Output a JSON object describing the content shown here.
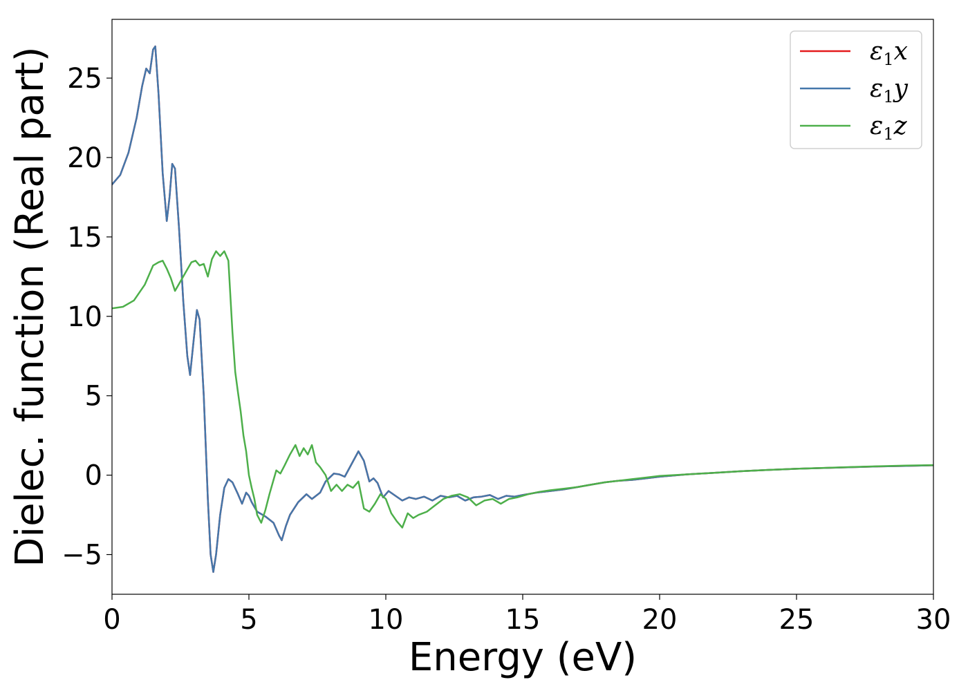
{
  "chart_data": {
    "type": "line",
    "title": "",
    "xlabel": "Energy (eV)",
    "ylabel": "Dielec. function (Real part)",
    "xlim": [
      0,
      30
    ],
    "ylim": [
      -7.5,
      28.7
    ],
    "xticks": [
      0,
      5,
      10,
      15,
      20,
      25,
      30
    ],
    "xtick_labels": [
      "0",
      "5",
      "10",
      "15",
      "20",
      "25",
      "30"
    ],
    "yticks": [
      -5,
      0,
      5,
      10,
      15,
      20,
      25
    ],
    "ytick_labels": [
      "−5",
      "0",
      "5",
      "10",
      "15",
      "20",
      "25"
    ],
    "grid": false,
    "legend_position": "top-right",
    "series": [
      {
        "name": "ε₁x",
        "legend": {
          "symbol": "ε",
          "sub": "1",
          "axis": "x"
        },
        "color": "#e41a1c",
        "x": [
          0,
          0.3,
          0.6,
          0.9,
          1.1,
          1.25,
          1.38,
          1.5,
          1.58,
          1.7,
          1.85,
          2.0,
          2.1,
          2.2,
          2.3,
          2.45,
          2.6,
          2.75,
          2.85,
          3.0,
          3.1,
          3.2,
          3.35,
          3.5,
          3.6,
          3.7,
          3.8,
          3.95,
          4.1,
          4.25,
          4.4,
          4.6,
          4.75,
          4.9,
          5.0,
          5.1,
          5.3,
          5.6,
          5.9,
          6.1,
          6.2,
          6.35,
          6.5,
          6.8,
          7.1,
          7.3,
          7.6,
          7.8,
          8.1,
          8.3,
          8.5,
          8.75,
          9.0,
          9.2,
          9.4,
          9.55,
          9.7,
          9.9,
          10.1,
          10.35,
          10.6,
          10.85,
          11.1,
          11.4,
          11.7,
          12.0,
          12.3,
          12.6,
          12.9,
          13.2,
          13.5,
          13.8,
          14.1,
          14.4,
          14.7,
          15.0,
          15.5,
          16.0,
          16.5,
          17.0,
          17.5,
          18.0,
          18.5,
          19.0,
          19.5,
          20.0,
          21.0,
          22.0,
          23.0,
          24.0,
          25.0,
          26.0,
          27.0,
          28.0,
          29.0,
          30.0
        ],
        "y": [
          18.3,
          18.9,
          20.3,
          22.5,
          24.5,
          25.6,
          25.3,
          26.8,
          27.0,
          24.0,
          19.0,
          16.0,
          17.5,
          19.6,
          19.3,
          15.5,
          11.0,
          7.5,
          6.3,
          8.8,
          10.4,
          9.8,
          5.0,
          -1.5,
          -5.0,
          -6.1,
          -5.0,
          -2.5,
          -0.8,
          -0.25,
          -0.45,
          -1.2,
          -1.8,
          -1.1,
          -1.3,
          -1.7,
          -2.3,
          -2.6,
          -3.0,
          -3.8,
          -4.1,
          -3.2,
          -2.5,
          -1.7,
          -1.2,
          -1.5,
          -1.1,
          -0.4,
          0.1,
          0.05,
          -0.1,
          0.7,
          1.5,
          0.9,
          -0.4,
          -0.2,
          -0.5,
          -1.4,
          -1.0,
          -1.3,
          -1.6,
          -1.4,
          -1.5,
          -1.35,
          -1.6,
          -1.3,
          -1.4,
          -1.3,
          -1.6,
          -1.4,
          -1.35,
          -1.25,
          -1.5,
          -1.3,
          -1.35,
          -1.25,
          -1.1,
          -1.0,
          -0.9,
          -0.75,
          -0.6,
          -0.45,
          -0.35,
          -0.3,
          -0.2,
          -0.1,
          0.05,
          0.15,
          0.25,
          0.33,
          0.4,
          0.45,
          0.5,
          0.55,
          0.58,
          0.62
        ]
      },
      {
        "name": "ε₁y",
        "legend": {
          "symbol": "ε",
          "sub": "1",
          "axis": "y"
        },
        "color": "#4477aa",
        "x": [
          0,
          0.3,
          0.6,
          0.9,
          1.1,
          1.25,
          1.38,
          1.5,
          1.58,
          1.7,
          1.85,
          2.0,
          2.1,
          2.2,
          2.3,
          2.45,
          2.6,
          2.75,
          2.85,
          3.0,
          3.1,
          3.2,
          3.35,
          3.5,
          3.6,
          3.7,
          3.8,
          3.95,
          4.1,
          4.25,
          4.4,
          4.6,
          4.75,
          4.9,
          5.0,
          5.1,
          5.3,
          5.6,
          5.9,
          6.1,
          6.2,
          6.35,
          6.5,
          6.8,
          7.1,
          7.3,
          7.6,
          7.8,
          8.1,
          8.3,
          8.5,
          8.75,
          9.0,
          9.2,
          9.4,
          9.55,
          9.7,
          9.9,
          10.1,
          10.35,
          10.6,
          10.85,
          11.1,
          11.4,
          11.7,
          12.0,
          12.3,
          12.6,
          12.9,
          13.2,
          13.5,
          13.8,
          14.1,
          14.4,
          14.7,
          15.0,
          15.5,
          16.0,
          16.5,
          17.0,
          17.5,
          18.0,
          18.5,
          19.0,
          19.5,
          20.0,
          21.0,
          22.0,
          23.0,
          24.0,
          25.0,
          26.0,
          27.0,
          28.0,
          29.0,
          30.0
        ],
        "y": [
          18.3,
          18.9,
          20.3,
          22.5,
          24.5,
          25.6,
          25.3,
          26.8,
          27.0,
          24.0,
          19.0,
          16.0,
          17.5,
          19.6,
          19.3,
          15.5,
          11.0,
          7.5,
          6.3,
          8.8,
          10.4,
          9.8,
          5.0,
          -1.5,
          -5.0,
          -6.1,
          -5.0,
          -2.5,
          -0.8,
          -0.25,
          -0.45,
          -1.2,
          -1.8,
          -1.1,
          -1.3,
          -1.7,
          -2.3,
          -2.6,
          -3.0,
          -3.8,
          -4.1,
          -3.2,
          -2.5,
          -1.7,
          -1.2,
          -1.5,
          -1.1,
          -0.4,
          0.1,
          0.05,
          -0.1,
          0.7,
          1.5,
          0.9,
          -0.4,
          -0.2,
          -0.5,
          -1.4,
          -1.0,
          -1.3,
          -1.6,
          -1.4,
          -1.5,
          -1.35,
          -1.6,
          -1.3,
          -1.4,
          -1.3,
          -1.6,
          -1.4,
          -1.35,
          -1.25,
          -1.5,
          -1.3,
          -1.35,
          -1.25,
          -1.1,
          -1.0,
          -0.9,
          -0.75,
          -0.6,
          -0.45,
          -0.35,
          -0.3,
          -0.2,
          -0.1,
          0.05,
          0.15,
          0.25,
          0.33,
          0.4,
          0.45,
          0.5,
          0.55,
          0.58,
          0.62
        ]
      },
      {
        "name": "ε₁z",
        "legend": {
          "symbol": "ε",
          "sub": "1",
          "axis": "z"
        },
        "color": "#4daf4a",
        "x": [
          0,
          0.4,
          0.8,
          1.2,
          1.5,
          1.7,
          1.85,
          2.0,
          2.15,
          2.3,
          2.5,
          2.7,
          2.9,
          3.05,
          3.2,
          3.35,
          3.5,
          3.65,
          3.8,
          3.95,
          4.1,
          4.25,
          4.4,
          4.5,
          4.6,
          4.7,
          4.8,
          4.9,
          5.0,
          5.1,
          5.2,
          5.3,
          5.45,
          5.6,
          5.75,
          5.9,
          6.0,
          6.15,
          6.3,
          6.5,
          6.7,
          6.85,
          7.0,
          7.15,
          7.3,
          7.45,
          7.6,
          7.8,
          8.0,
          8.2,
          8.4,
          8.6,
          8.8,
          9.0,
          9.2,
          9.4,
          9.6,
          9.8,
          10.0,
          10.2,
          10.4,
          10.6,
          10.8,
          11.0,
          11.2,
          11.5,
          11.8,
          12.1,
          12.4,
          12.7,
          13.0,
          13.3,
          13.6,
          13.9,
          14.2,
          14.5,
          14.8,
          15.2,
          15.6,
          16.0,
          16.5,
          17.0,
          17.5,
          18.0,
          18.5,
          19.0,
          19.5,
          20.0,
          21.0,
          22.0,
          23.0,
          24.0,
          25.0,
          26.0,
          27.0,
          28.0,
          29.0,
          30.0
        ],
        "y": [
          10.5,
          10.6,
          11.0,
          12.0,
          13.2,
          13.4,
          13.5,
          13.0,
          12.4,
          11.6,
          12.2,
          12.8,
          13.4,
          13.5,
          13.2,
          13.3,
          12.5,
          13.6,
          14.1,
          13.8,
          14.1,
          13.5,
          9.0,
          6.5,
          5.2,
          4.0,
          2.5,
          1.5,
          0.0,
          -0.8,
          -1.5,
          -2.5,
          -3.0,
          -2.2,
          -1.2,
          -0.3,
          0.3,
          0.1,
          0.6,
          1.3,
          1.9,
          1.2,
          1.7,
          1.3,
          1.9,
          0.8,
          0.5,
          0.0,
          -1.0,
          -0.6,
          -1.0,
          -0.6,
          -0.8,
          -0.4,
          -2.1,
          -2.3,
          -1.8,
          -1.2,
          -1.5,
          -2.4,
          -2.9,
          -3.3,
          -2.4,
          -2.7,
          -2.5,
          -2.3,
          -1.9,
          -1.5,
          -1.3,
          -1.2,
          -1.4,
          -1.9,
          -1.6,
          -1.5,
          -1.8,
          -1.5,
          -1.4,
          -1.2,
          -1.05,
          -0.95,
          -0.85,
          -0.75,
          -0.6,
          -0.45,
          -0.35,
          -0.25,
          -0.15,
          -0.05,
          0.05,
          0.15,
          0.25,
          0.33,
          0.4,
          0.46,
          0.51,
          0.56,
          0.6,
          0.63
        ]
      }
    ]
  }
}
